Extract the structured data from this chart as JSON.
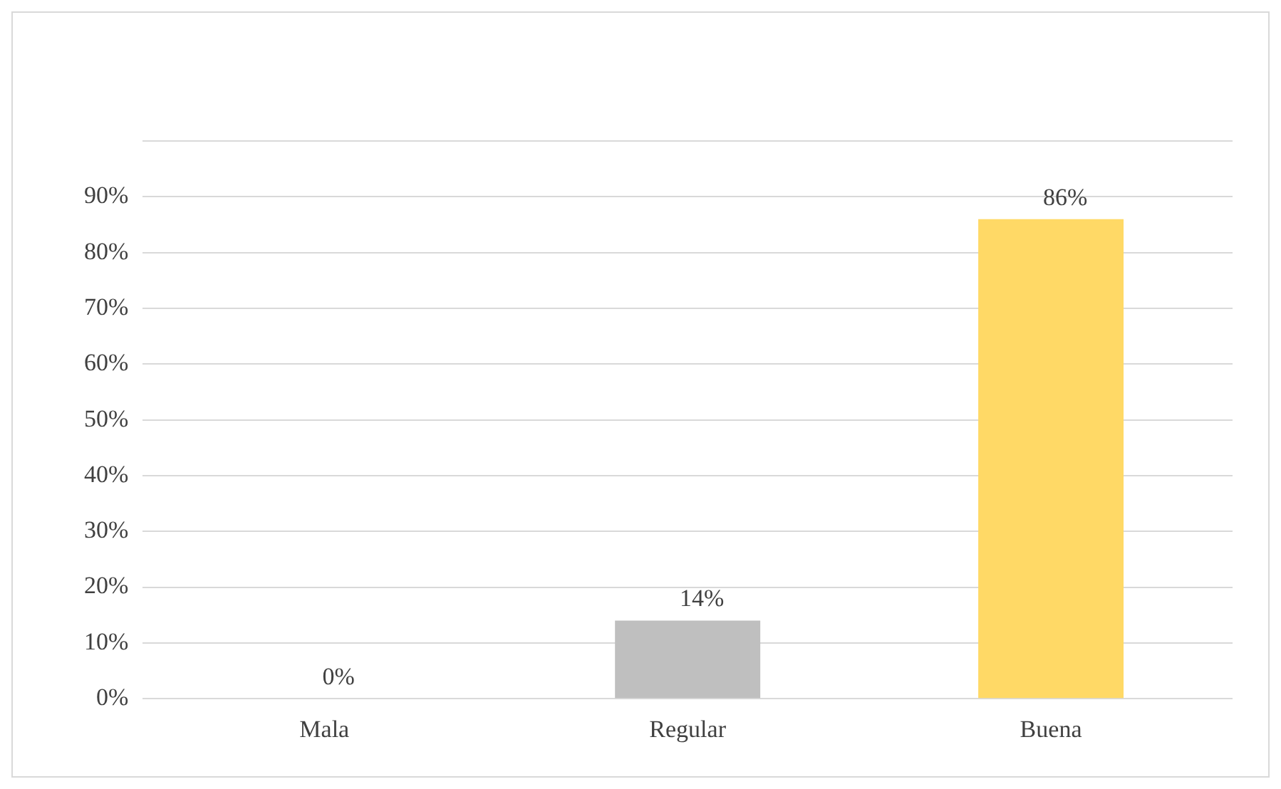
{
  "chart_data": {
    "type": "bar",
    "categories": [
      "Mala",
      "Regular",
      "Buena"
    ],
    "values": [
      0,
      14,
      86
    ],
    "colors": [
      "#2f5597",
      "#bfbfbf",
      "#ffd966"
    ],
    "value_labels": [
      "0%",
      "14%",
      "86%"
    ],
    "ylim": [
      0,
      100
    ],
    "yticks": [
      {
        "value": 0,
        "label": "0%"
      },
      {
        "value": 10,
        "label": "10%"
      },
      {
        "value": 20,
        "label": "20%"
      },
      {
        "value": 30,
        "label": "30%"
      },
      {
        "value": 40,
        "label": "40%"
      },
      {
        "value": 50,
        "label": "50%"
      },
      {
        "value": 60,
        "label": "60%"
      },
      {
        "value": 70,
        "label": "70%"
      },
      {
        "value": 80,
        "label": "80%"
      },
      {
        "value": 90,
        "label": "90%"
      },
      {
        "value": 100,
        "label": null
      }
    ],
    "grid": "y",
    "legend": false
  }
}
